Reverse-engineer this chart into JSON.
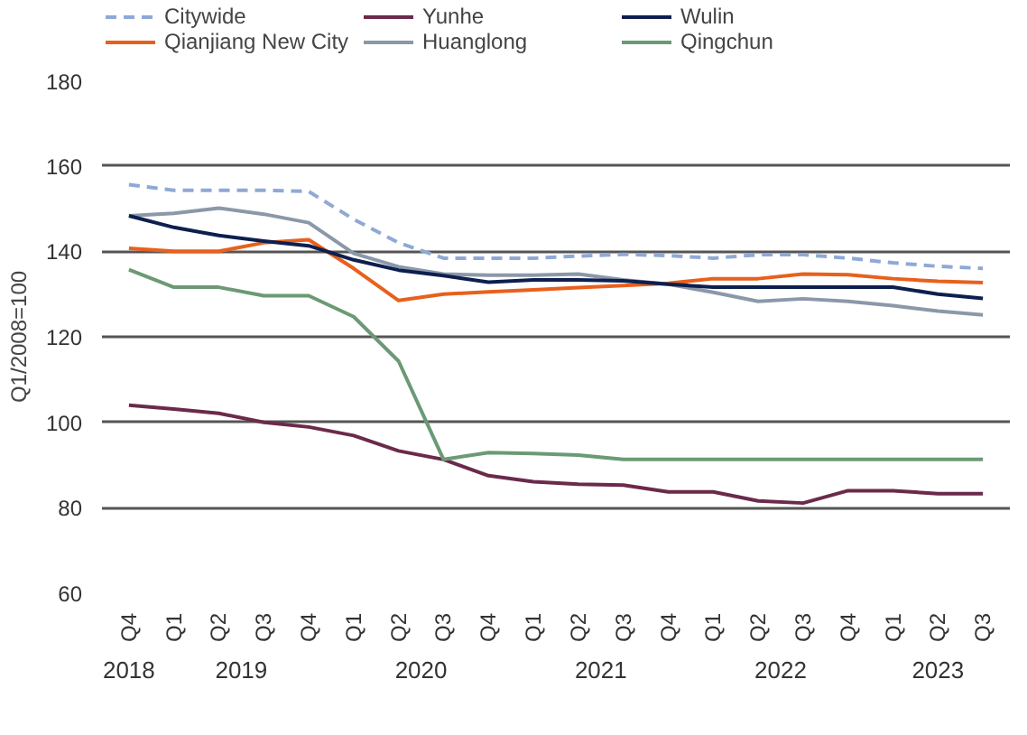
{
  "chart_data": {
    "type": "line",
    "ylabel": "Q1/2008=100",
    "categories": [
      "Q4",
      "Q1",
      "Q2",
      "Q3",
      "Q4",
      "Q1",
      "Q2",
      "Q3",
      "Q4",
      "Q1",
      "Q2",
      "Q3",
      "Q4",
      "Q1",
      "Q2",
      "Q3",
      "Q4",
      "Q1",
      "Q2",
      "Q3"
    ],
    "annotations": [
      "2018",
      "2019",
      "2020",
      "2021",
      "2022",
      "2023"
    ],
    "ylim": [
      60,
      180
    ],
    "yticks": [
      60,
      80,
      100,
      120,
      140,
      160,
      180
    ],
    "grid": "y",
    "legend": "top",
    "marker": "none",
    "series": [
      {
        "name": "Citywide",
        "color": "#8fa9d6",
        "line_style": "dashed",
        "values": [
          155.6,
          154.3,
          154.3,
          154.3,
          154,
          147.5,
          142,
          138.4,
          138.4,
          138.4,
          138.9,
          139.3,
          139,
          138.4,
          139.2,
          139.2,
          138.4,
          137.3,
          136.5,
          136
        ]
      },
      {
        "name": "Qianjiang New City",
        "color": "#e8601c",
        "values": [
          140.7,
          140,
          140,
          142,
          142.7,
          136,
          128.5,
          130,
          130.5,
          131,
          131.5,
          132,
          132.5,
          133.6,
          133.6,
          134.7,
          134.5,
          133.6,
          133,
          132.7
        ]
      },
      {
        "name": "Yunhe",
        "color": "#6b2a4b",
        "values": [
          104,
          103.1,
          102.1,
          100,
          98.9,
          96.9,
          93.3,
          91.3,
          87.5,
          86.1,
          85.5,
          85.3,
          83.7,
          83.7,
          81.6,
          81.1,
          84,
          84,
          83.3,
          83.3
        ]
      },
      {
        "name": "Huanglong",
        "color": "#8a98a8",
        "values": [
          148.3,
          148.9,
          150.1,
          148.7,
          146.7,
          139.5,
          136.4,
          134.7,
          134.4,
          134.4,
          134.7,
          133.3,
          132.3,
          130.4,
          128.3,
          128.9,
          128.3,
          127.3,
          126,
          125.1
        ]
      },
      {
        "name": "Wulin",
        "color": "#0d1f4f",
        "values": [
          148.3,
          145.6,
          143.7,
          142.4,
          141.3,
          138,
          135.6,
          134.3,
          132.8,
          133.3,
          133.3,
          133.1,
          132.3,
          131.6,
          131.6,
          131.6,
          131.6,
          131.6,
          130,
          129
        ]
      },
      {
        "name": "Qingchun",
        "color": "#6b9a74",
        "values": [
          135.7,
          131.6,
          131.6,
          129.6,
          129.6,
          124.7,
          114.3,
          91.3,
          92.9,
          92.7,
          92.3,
          91.3,
          91.3,
          91.3,
          91.3,
          91.3,
          91.3,
          91.3,
          91.3,
          91.3
        ]
      }
    ]
  }
}
